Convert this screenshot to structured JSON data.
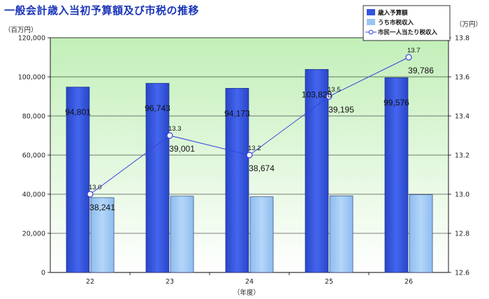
{
  "chart_data": {
    "type": "bar",
    "title": "一般会計歳入当初予算額及び市税の推移",
    "xlabel": "（年度）",
    "y1label": "（百万円）",
    "y2label": "（万円）",
    "categories": [
      "22",
      "23",
      "24",
      "25",
      "26"
    ],
    "y1lim": [
      0,
      120000
    ],
    "y1ticks": [
      "0",
      "20,000",
      "40,000",
      "60,000",
      "80,000",
      "100,000",
      "120,000"
    ],
    "y2lim": [
      12.6,
      13.8
    ],
    "y2ticks": [
      "12.6",
      "12.8",
      "13.0",
      "13.2",
      "13.4",
      "13.6",
      "13.8"
    ],
    "series": [
      {
        "name": "歳入予算額",
        "type": "bar",
        "axis": "left",
        "color": "#3355dd",
        "values": [
          94801,
          96743,
          94173,
          103828,
          99576
        ],
        "labels": [
          "94,801",
          "96,743",
          "94,173",
          "103,828",
          "99,576"
        ]
      },
      {
        "name": "うち市税収入",
        "type": "bar",
        "axis": "left",
        "color": "#99c6f2",
        "values": [
          38241,
          39001,
          38674,
          39195,
          39786
        ],
        "labels": [
          "38,241",
          "39,001",
          "38,674",
          "39,195",
          "39,786"
        ]
      },
      {
        "name": "市民一人当たり税収入",
        "type": "line",
        "axis": "right",
        "color": "#3344dd",
        "values": [
          13.0,
          13.3,
          13.2,
          13.5,
          13.7
        ],
        "labels": [
          "13.0",
          "13.3",
          "13.2",
          "13.5",
          "13.7"
        ]
      }
    ],
    "grid": true,
    "legend_position": "top-right"
  }
}
